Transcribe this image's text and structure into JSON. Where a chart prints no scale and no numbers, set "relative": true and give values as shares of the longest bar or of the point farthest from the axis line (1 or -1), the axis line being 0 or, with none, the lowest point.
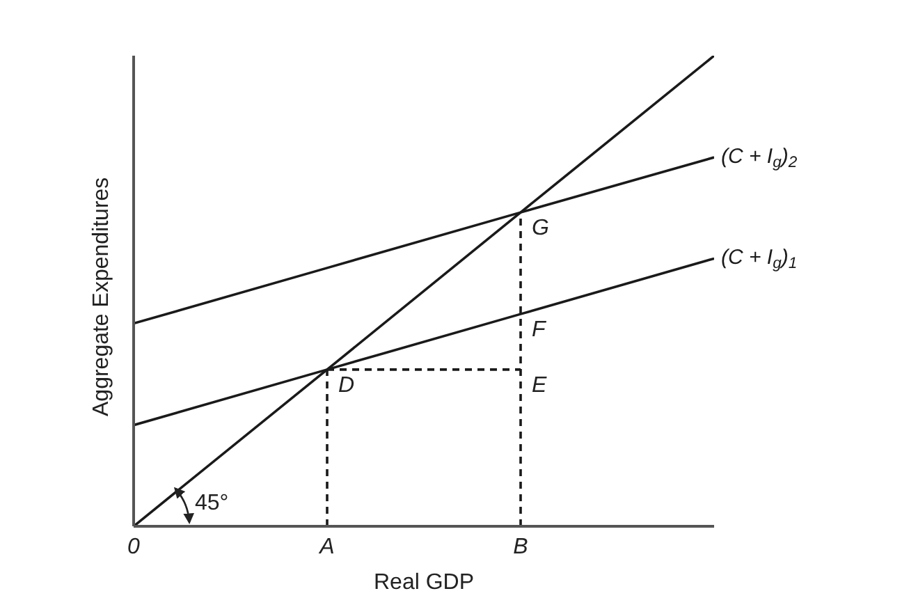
{
  "chart_data": {
    "type": "line",
    "relative": true,
    "xlabel": "Real GDP",
    "ylabel": "Aggregate Expenditures",
    "categories": [
      "0",
      "A",
      "B",
      null
    ],
    "tick_labels": "x",
    "marker": "none",
    "annotations": [
      "45°",
      {
        "text": "D",
        "x": "A",
        "y": 0.333
      },
      {
        "text": "E",
        "x": "B",
        "y": 0.333
      },
      {
        "text": "F",
        "x": "B",
        "y": 0.451
      },
      {
        "text": "G",
        "x": "B",
        "y": 0.667
      }
    ],
    "series": [
      {
        "values": [
          0,
          0.333,
          0.667,
          1
        ],
        "color": "#1a1a1a"
      },
      {
        "name": "(C + I$_{g}$)$_{1}$",
        "values": [
          0.215,
          0.333,
          0.451,
          0.569
        ],
        "color": "#1a1a1a"
      },
      {
        "name": "(C + I$_{g}$)$_{2}$",
        "values": [
          0.431,
          0.549,
          0.667,
          0.784
        ],
        "color": "#1a1a1a"
      },
      {
        "x": [
          "A",
          "A"
        ],
        "values": [
          0,
          0.333
        ],
        "color": "#1a1a1a",
        "line_style": "dashed"
      },
      {
        "x": [
          "A",
          "B"
        ],
        "values": [
          0.333,
          0.333
        ],
        "color": "#1a1a1a",
        "line_style": "dashed"
      },
      {
        "x": [
          "B",
          "B"
        ],
        "values": [
          0,
          0.667
        ],
        "color": "#1a1a1a",
        "line_style": "dashed"
      }
    ]
  }
}
